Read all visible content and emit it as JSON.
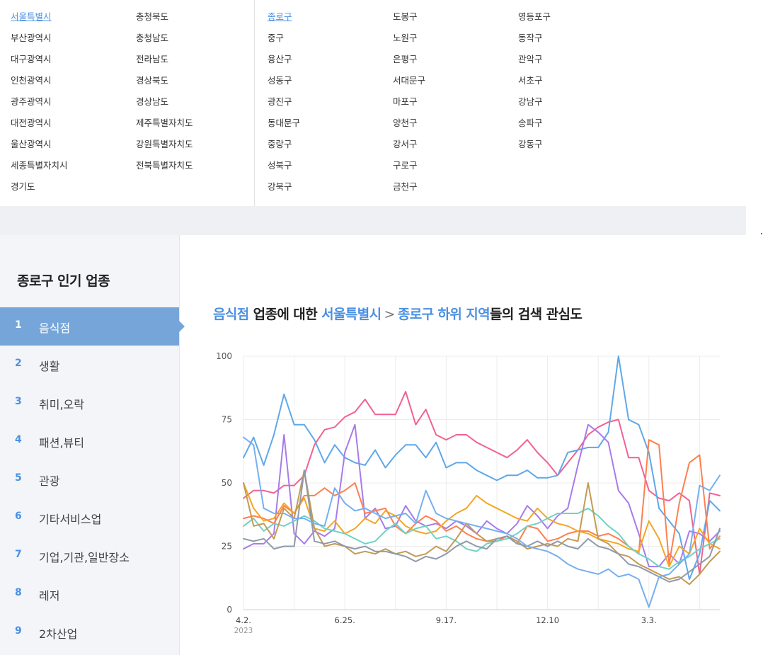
{
  "regions": {
    "provinces_col1": [
      "서울특별시",
      "부산광역시",
      "대구광역시",
      "인천광역시",
      "광주광역시",
      "대전광역시",
      "울산광역시",
      "세종특별자치시",
      "경기도"
    ],
    "provinces_col2": [
      "충청북도",
      "충청남도",
      "전라남도",
      "경상북도",
      "경상남도",
      "제주특별자치도",
      "강원특별자치도",
      "전북특별자치도"
    ],
    "districts_col1": [
      "종로구",
      "중구",
      "용산구",
      "성동구",
      "광진구",
      "동대문구",
      "중랑구",
      "성북구",
      "강북구"
    ],
    "districts_col2": [
      "도봉구",
      "노원구",
      "은평구",
      "서대문구",
      "마포구",
      "양천구",
      "강서구",
      "구로구",
      "금천구"
    ],
    "districts_col3": [
      "영등포구",
      "동작구",
      "관악구",
      "서초구",
      "강남구",
      "송파구",
      "강동구"
    ],
    "selected_province": "서울특별시",
    "selected_district": "종로구"
  },
  "sidebar": {
    "title": "종로구 인기 업종",
    "items": [
      {
        "rank": "1",
        "label": "음식점"
      },
      {
        "rank": "2",
        "label": "생활"
      },
      {
        "rank": "3",
        "label": "취미,오락"
      },
      {
        "rank": "4",
        "label": "패션,뷰티"
      },
      {
        "rank": "5",
        "label": "관광"
      },
      {
        "rank": "6",
        "label": "기타서비스업"
      },
      {
        "rank": "7",
        "label": "기업,기관,일반장소"
      },
      {
        "rank": "8",
        "label": "레저"
      },
      {
        "rank": "9",
        "label": "2차산업"
      }
    ]
  },
  "heading": {
    "category": "음식점",
    "text1": " 업종에 대한 ",
    "region": "서울특별시",
    "arrow": ">",
    "subregion": "종로구 하위 지역",
    "text2": "들의 검색 관심도"
  },
  "colors": {
    "accent": "#4a90e2",
    "active_row": "#76a6d9",
    "series": [
      "#f06292",
      "#5fa8e8",
      "#a77bea",
      "#ff7f50",
      "#f5a623",
      "#6fd3c4",
      "#c49a52",
      "#8e9aab",
      "#76b0ef"
    ]
  },
  "chart_data": {
    "type": "line",
    "x_labels": [
      "4.2.",
      "6.25.",
      "9.17.",
      "12.10",
      "3.3."
    ],
    "x_label_sub": "2023",
    "y_ticks": [
      0,
      25,
      50,
      75,
      100
    ],
    "ylim": [
      0,
      100
    ],
    "grid": true,
    "points": 48,
    "series": [
      {
        "values": [
          44,
          47,
          47,
          46,
          49,
          49,
          53,
          65,
          71,
          72,
          76,
          78,
          83,
          77,
          77,
          77,
          86,
          73,
          79,
          69,
          67,
          69,
          69,
          66,
          64,
          62,
          60,
          63,
          67,
          62,
          58,
          53,
          58,
          63,
          69,
          72,
          74,
          75,
          60,
          60,
          47,
          44,
          43,
          46,
          43,
          14,
          46,
          45
        ]
      },
      {
        "values": [
          60,
          68,
          57,
          69,
          85,
          73,
          73,
          67,
          58,
          65,
          60,
          58,
          57,
          63,
          56,
          61,
          65,
          65,
          60,
          66,
          56,
          58,
          58,
          55,
          53,
          51,
          53,
          53,
          55,
          52,
          52,
          53,
          62,
          63,
          64,
          64,
          70,
          100,
          75,
          73,
          62,
          40,
          35,
          30,
          12,
          22,
          43,
          39
        ]
      },
      {
        "values": [
          24,
          26,
          26,
          30,
          69,
          30,
          26,
          31,
          29,
          32,
          62,
          73,
          36,
          40,
          32,
          33,
          41,
          35,
          33,
          34,
          32,
          35,
          33,
          30,
          35,
          32,
          30,
          34,
          41,
          37,
          32,
          37,
          40,
          57,
          73,
          70,
          66,
          47,
          42,
          30,
          17,
          17,
          22,
          18,
          31,
          30,
          27,
          31
        ]
      },
      {
        "values": [
          36,
          37,
          36,
          34,
          41,
          38,
          45,
          45,
          48,
          45,
          47,
          50,
          38,
          39,
          40,
          33,
          30,
          34,
          37,
          35,
          31,
          33,
          30,
          28,
          27,
          27,
          29,
          26,
          33,
          32,
          27,
          28,
          30,
          31,
          31,
          29,
          30,
          28,
          25,
          22,
          67,
          65,
          18,
          42,
          58,
          61,
          24,
          29
        ]
      },
      {
        "values": [
          50,
          40,
          35,
          36,
          42,
          38,
          44,
          32,
          31,
          35,
          30,
          32,
          36,
          34,
          39,
          37,
          33,
          31,
          30,
          31,
          35,
          38,
          40,
          45,
          42,
          40,
          38,
          36,
          35,
          40,
          36,
          34,
          33,
          31,
          30,
          28,
          27,
          26,
          24,
          23,
          35,
          28,
          17,
          25,
          22,
          32,
          26,
          24
        ]
      },
      {
        "values": [
          33,
          36,
          31,
          34,
          33,
          35,
          37,
          35,
          32,
          31,
          30,
          28,
          26,
          27,
          31,
          34,
          30,
          32,
          33,
          28,
          29,
          27,
          24,
          23,
          26,
          27,
          28,
          30,
          33,
          34,
          36,
          38,
          38,
          38,
          40,
          37,
          33,
          30,
          25,
          22,
          20,
          17,
          16,
          19,
          21,
          24,
          26,
          28
        ]
      },
      {
        "values": [
          50,
          33,
          34,
          28,
          40,
          36,
          55,
          32,
          25,
          26,
          25,
          22,
          23,
          22,
          24,
          22,
          23,
          21,
          22,
          25,
          23,
          28,
          34,
          30,
          27,
          28,
          29,
          27,
          24,
          25,
          26,
          25,
          28,
          27,
          50,
          28,
          26,
          22,
          21,
          18,
          16,
          14,
          12,
          13,
          10,
          14,
          19,
          23
        ]
      },
      {
        "values": [
          28,
          27,
          28,
          24,
          25,
          25,
          55,
          27,
          26,
          27,
          25,
          24,
          25,
          23,
          23,
          22,
          21,
          19,
          21,
          20,
          22,
          25,
          27,
          25,
          24,
          28,
          29,
          26,
          25,
          27,
          25,
          27,
          25,
          24,
          28,
          25,
          24,
          22,
          18,
          17,
          15,
          13,
          11,
          12,
          15,
          18,
          21,
          32
        ]
      },
      {
        "values": [
          68,
          65,
          40,
          38,
          38,
          36,
          36,
          34,
          33,
          48,
          42,
          39,
          40,
          38,
          36,
          37,
          38,
          34,
          47,
          38,
          36,
          35,
          34,
          33,
          32,
          31,
          30,
          28,
          25,
          24,
          23,
          21,
          18,
          16,
          15,
          14,
          16,
          13,
          14,
          12,
          1,
          13,
          14,
          18,
          22,
          49,
          47,
          53
        ]
      }
    ]
  }
}
